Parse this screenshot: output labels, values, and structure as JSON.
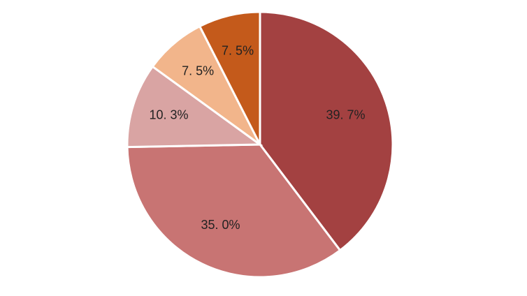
{
  "chart_data": {
    "type": "pie",
    "values": [
      39.7,
      35.0,
      10.3,
      7.5,
      7.5
    ],
    "value_labels": [
      "39. 7%",
      "35. 0%",
      "10. 3%",
      "7. 5%",
      "7. 5%"
    ],
    "colors": [
      "#a34141",
      "#c87473",
      "#d9a4a3",
      "#f2b58b",
      "#c45a1b"
    ]
  }
}
